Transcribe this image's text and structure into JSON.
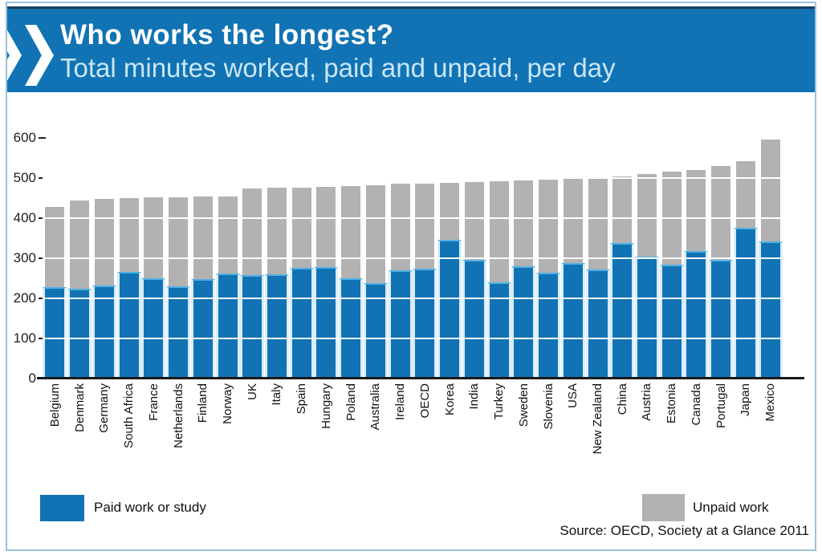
{
  "header": {
    "title": "Who works the longest?",
    "subtitle": "Total minutes worked, paid and unpaid, per day"
  },
  "legend": {
    "paid_label": "Paid work or study",
    "unpaid_label": "Unpaid work"
  },
  "source": "Source: OECD, Society at a Glance 2011",
  "colors": {
    "banner_blue": "#1173b3",
    "paid_blue": "#1173b3",
    "unpaid_gray": "#b2b2b2",
    "bar_gap_cyan": "#d9edfa",
    "paid_cap_blue": "#4fb0e4",
    "banner_top_navy": "#1c3d5e",
    "frame_border": "#9cc3db",
    "gridline_white": "#ffffff",
    "axis_black": "#17191c"
  },
  "chart_data": {
    "type": "bar",
    "stacked": true,
    "title": "Who works the longest?",
    "subtitle": "Total minutes worked, paid and unpaid, per day",
    "units": "minutes per day",
    "xlabel": "",
    "ylabel": "",
    "ylim": [
      0,
      620
    ],
    "yticks": [
      0,
      100,
      200,
      300,
      400,
      500,
      600
    ],
    "gridlines": [
      100,
      200,
      300,
      400,
      500
    ],
    "grid": "white horizontal lines drawn over bars",
    "legend_position": "bottom",
    "categories": [
      "Belgium",
      "Denmark",
      "Germany",
      "South Africa",
      "France",
      "Netherlands",
      "Finland",
      "Norway",
      "UK",
      "Italy",
      "Spain",
      "Hungary",
      "Poland",
      "Australia",
      "Ireland",
      "OECD",
      "Korea",
      "India",
      "Turkey",
      "Sweden",
      "Slovenia",
      "USA",
      "New Zealand",
      "China",
      "Austria",
      "Estonia",
      "Canada",
      "Portugal",
      "Japan",
      "Mexico"
    ],
    "series": [
      {
        "name": "Paid work or study",
        "color": "#1173b3",
        "values": [
          228,
          225,
          232,
          266,
          251,
          231,
          249,
          263,
          259,
          261,
          277,
          279,
          251,
          239,
          271,
          275,
          347,
          297,
          241,
          281,
          264,
          289,
          272,
          339,
          305,
          284,
          319,
          296,
          377,
          343
        ]
      },
      {
        "name": "Unpaid work",
        "color": "#b2b2b2",
        "values": [
          201,
          220,
          216,
          184,
          201,
          222,
          205,
          192,
          215,
          215,
          200,
          200,
          230,
          244,
          215,
          212,
          141,
          193,
          251,
          214,
          233,
          209,
          229,
          166,
          206,
          233,
          201,
          234,
          165,
          254
        ]
      }
    ],
    "totals": [
      429,
      445,
      448,
      450,
      452,
      453,
      454,
      455,
      474,
      476,
      477,
      479,
      481,
      483,
      486,
      487,
      488,
      490,
      492,
      495,
      497,
      498,
      501,
      505,
      511,
      517,
      520,
      530,
      542,
      597
    ]
  }
}
